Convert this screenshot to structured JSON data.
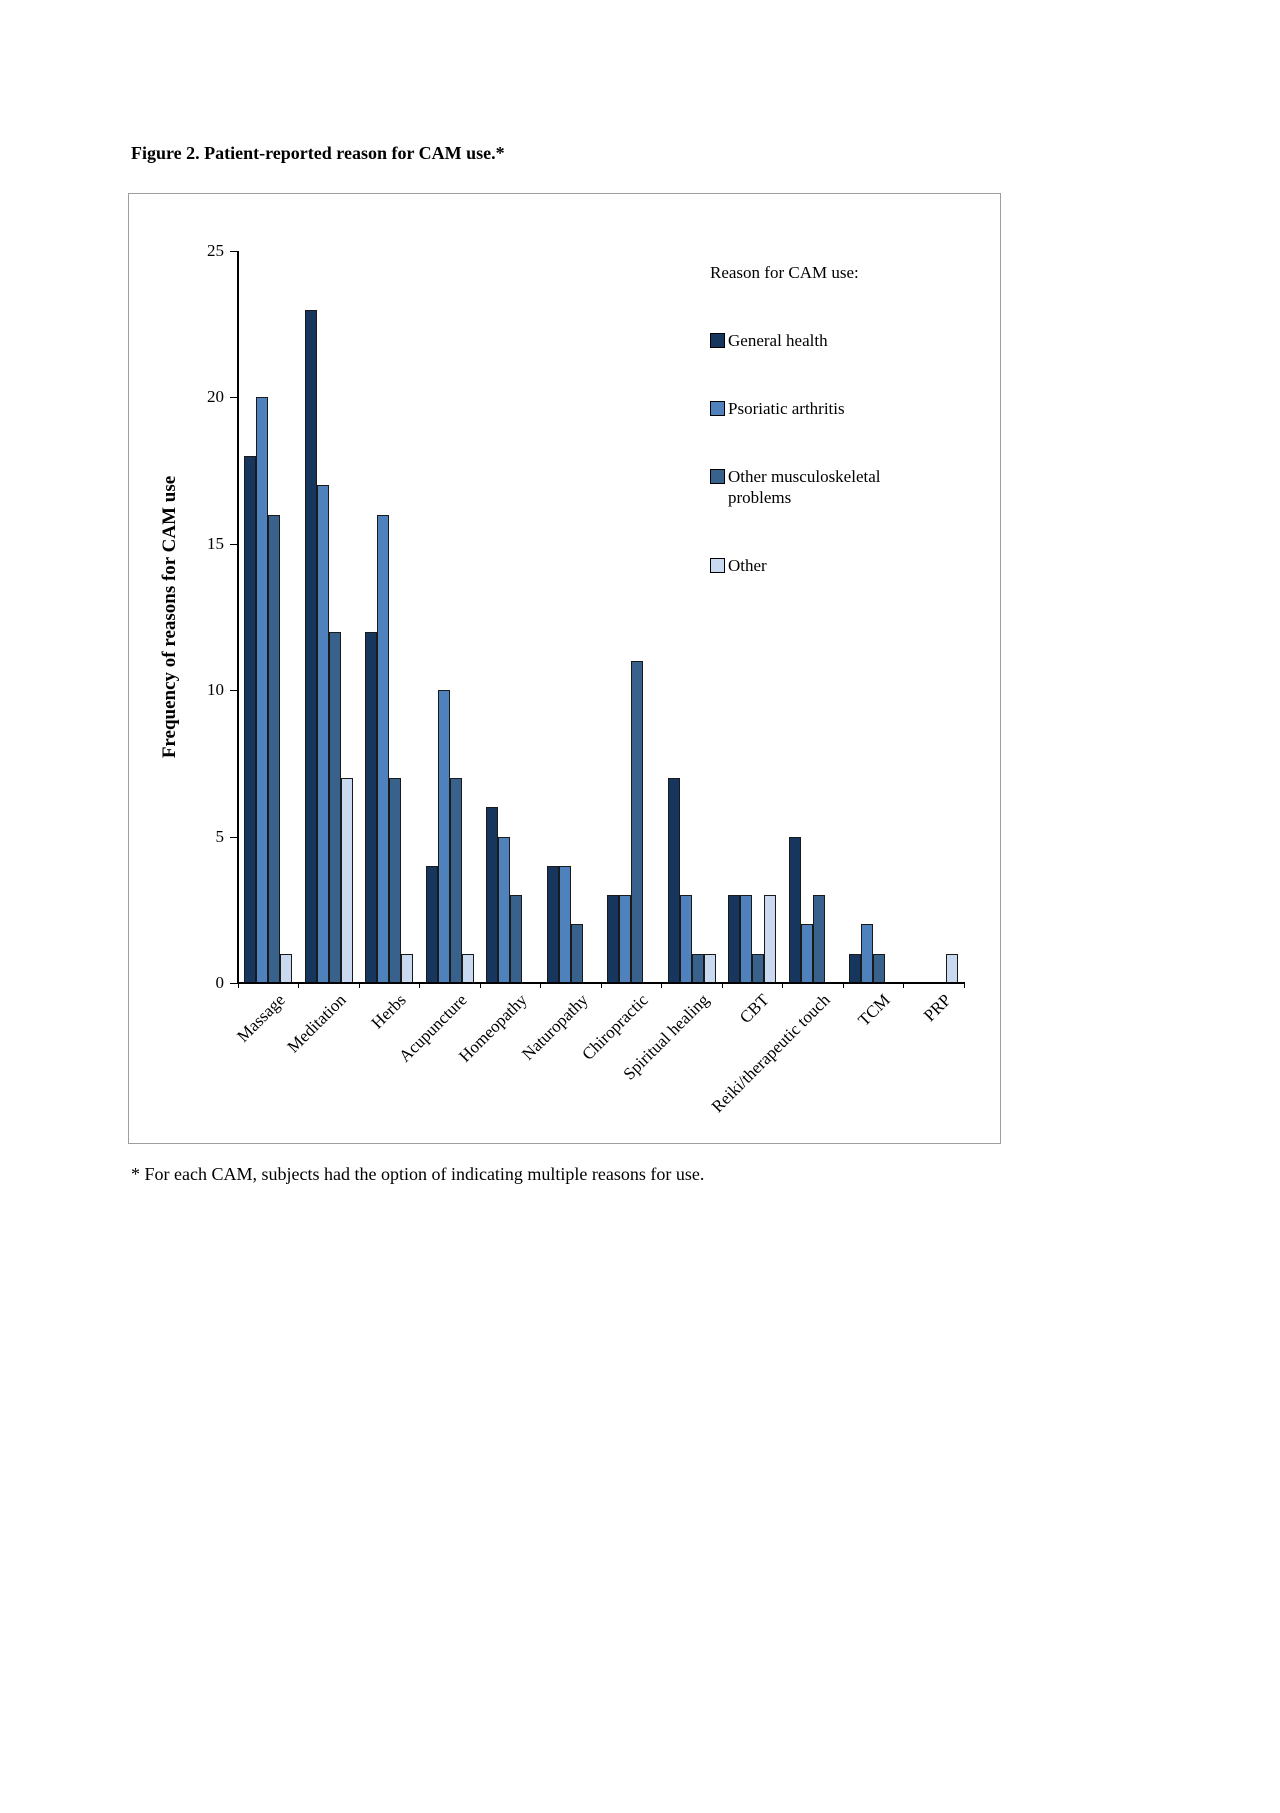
{
  "page": {
    "title": "Figure 2. Patient-reported reason for CAM use.*",
    "footnote": "* For each CAM, subjects had the option of indicating multiple reasons for use."
  },
  "chart_data": {
    "type": "bar",
    "title": "Figure 2. Patient-reported reason for CAM use.*",
    "xlabel": "",
    "ylabel": "Frequency of reasons for CAM use",
    "ylim": [
      0,
      25
    ],
    "yticks": [
      0,
      5,
      10,
      15,
      20,
      25
    ],
    "grid": false,
    "legend_title": "Reason for CAM use:",
    "legend_position": "top-right-inside",
    "categories": [
      "Massage",
      "Meditation",
      "Herbs",
      "Acupuncture",
      "Homeopathy",
      "Naturopathy",
      "Chiropractic",
      "Spiritual healing",
      "CBT",
      "Reiki/therapeutic touch",
      "TCM",
      "PRP"
    ],
    "series": [
      {
        "name": "General health",
        "color": "#17365D",
        "values": [
          18,
          23,
          12,
          4,
          6,
          4,
          3,
          7,
          3,
          5,
          1,
          0
        ]
      },
      {
        "name": "Psoriatic arthritis",
        "color": "#4F81BD",
        "values": [
          20,
          17,
          16,
          10,
          5,
          4,
          3,
          3,
          3,
          2,
          2,
          0
        ]
      },
      {
        "name": "Other musculoskeletal problems",
        "color": "#38618C",
        "values": [
          16,
          12,
          7,
          7,
          3,
          2,
          11,
          1,
          1,
          3,
          1,
          0
        ]
      },
      {
        "name": "Other",
        "color": "#C9D9EF",
        "values": [
          1,
          7,
          1,
          1,
          0,
          0,
          0,
          1,
          3,
          0,
          0,
          1
        ]
      }
    ]
  }
}
